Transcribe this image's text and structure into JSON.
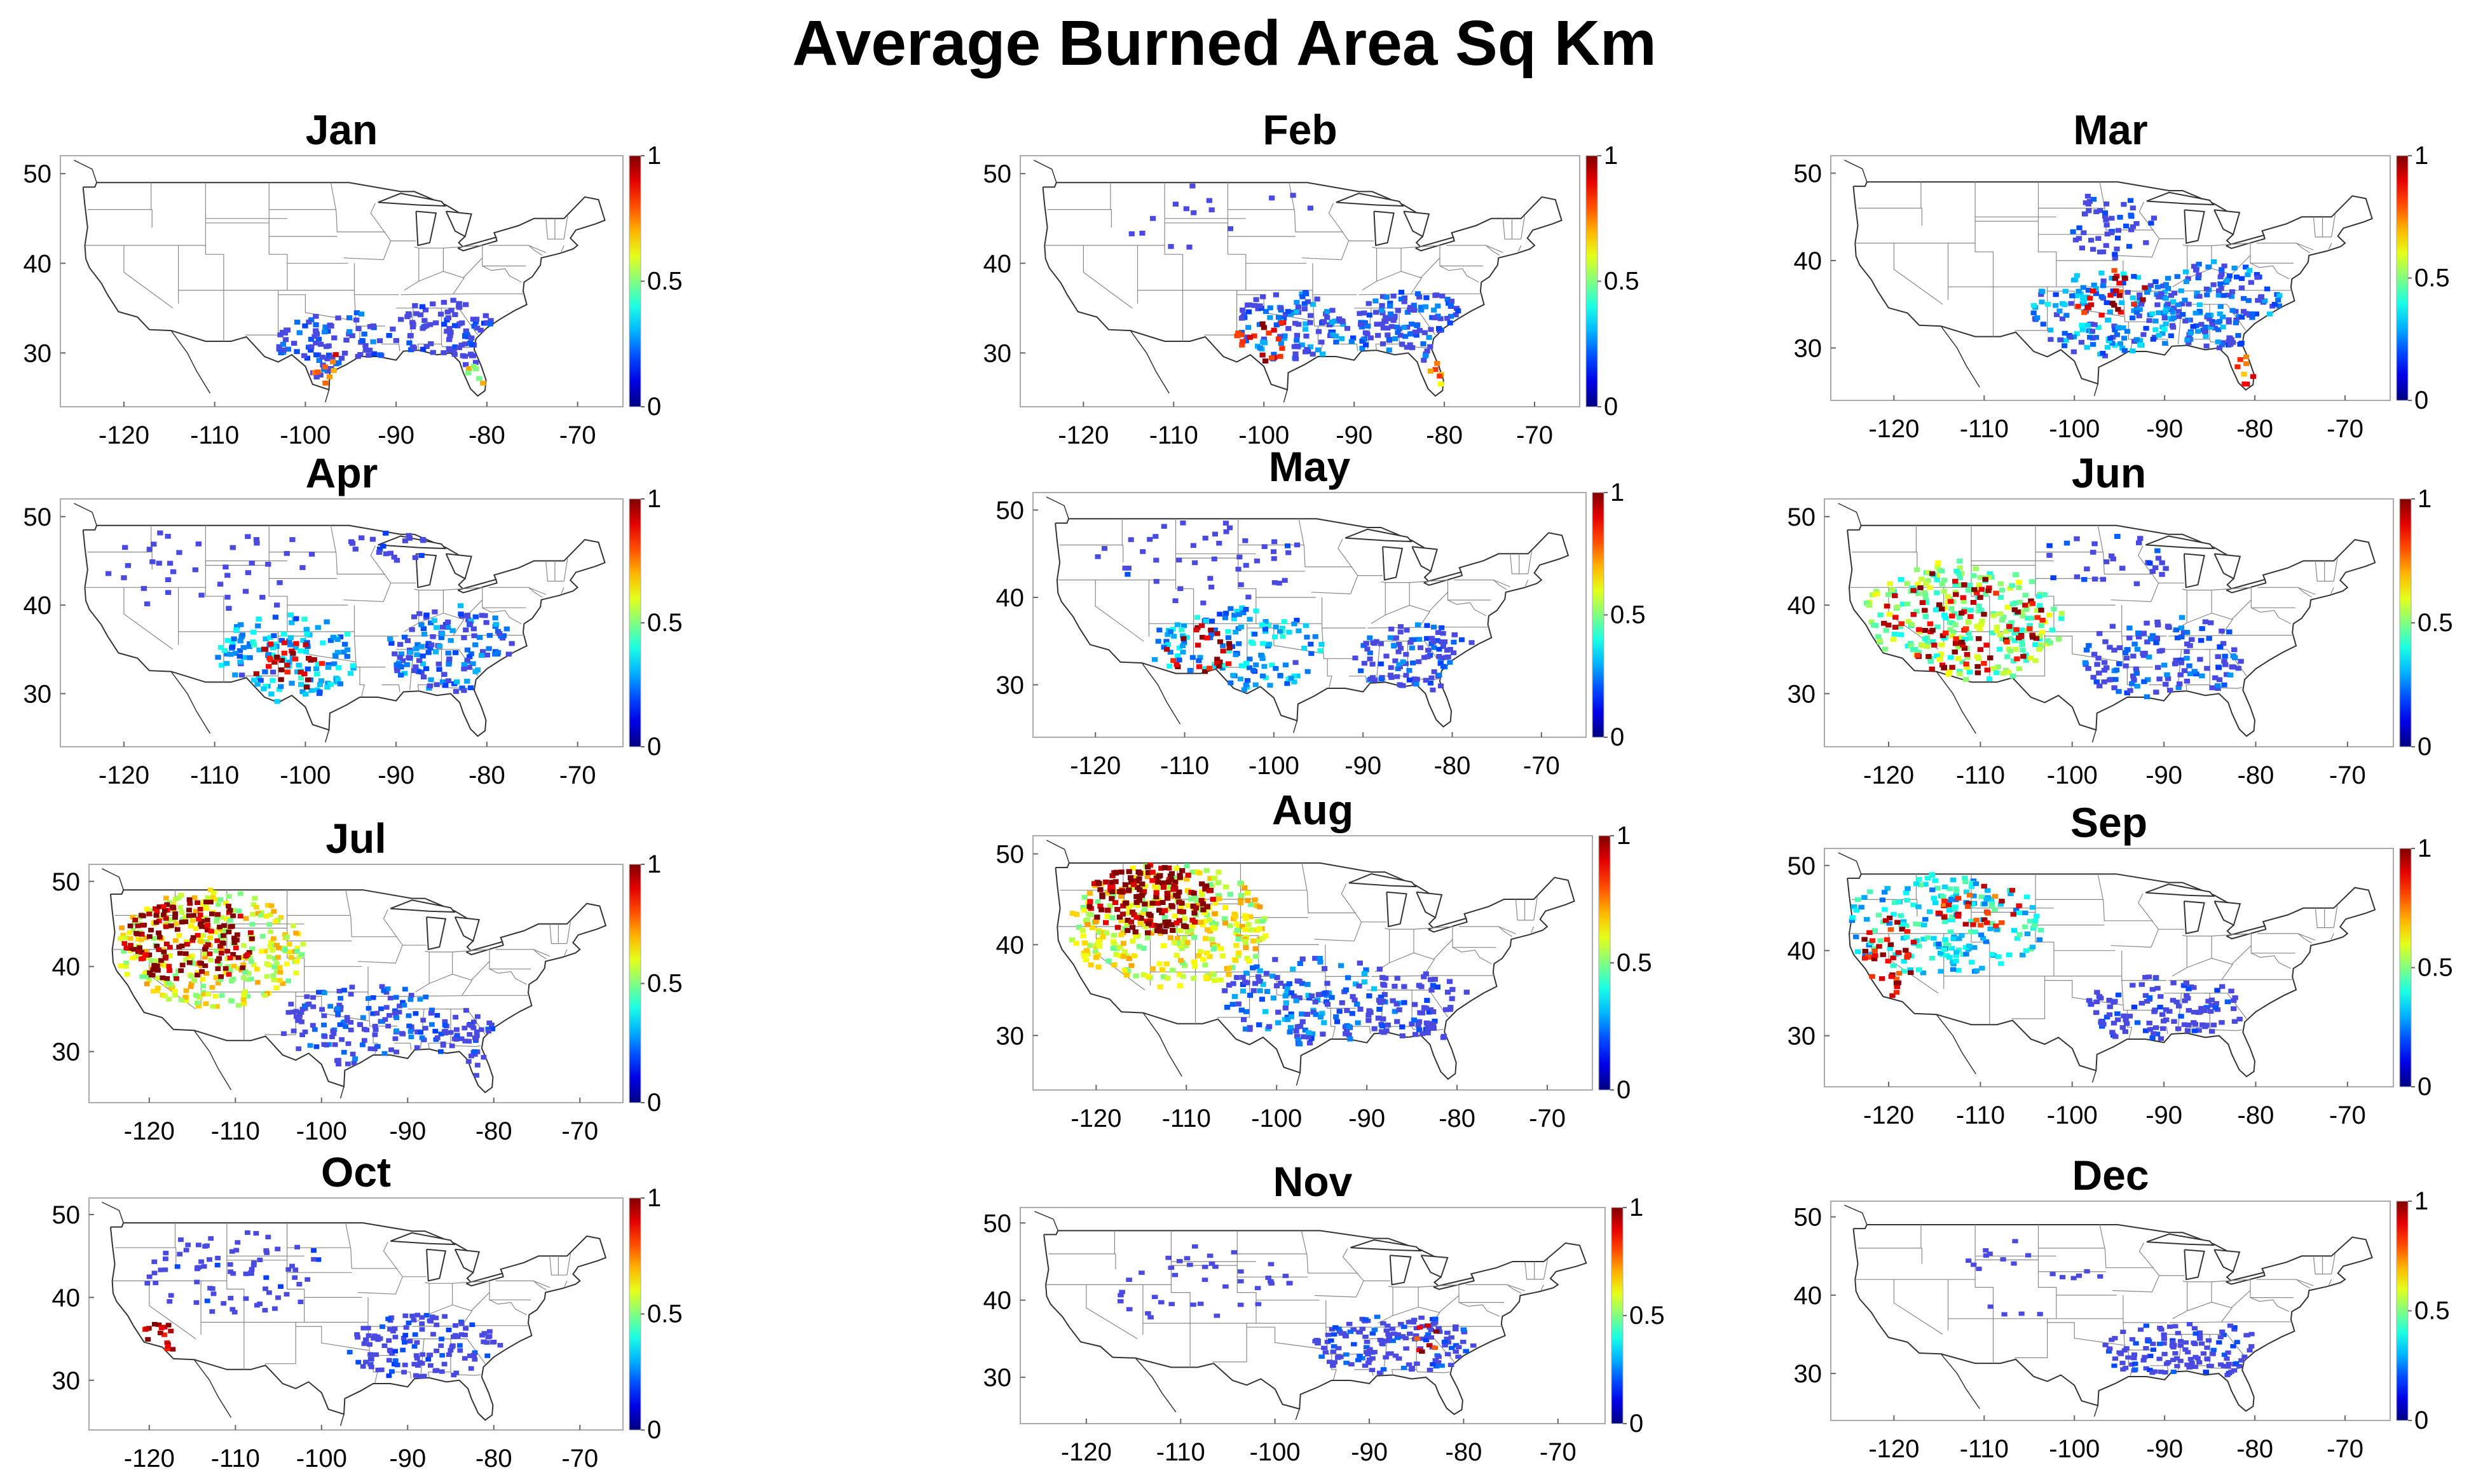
{
  "title": "Average Burned Area Sq Km",
  "colors": {
    "jet_scale": [
      "#00008f",
      "#0000ff",
      "#00ffff",
      "#ffff00",
      "#ff0000",
      "#800000"
    ],
    "low_value_cell": "#4a4ae0",
    "map_line": "#333333",
    "state_line": "#888888"
  },
  "chart_data": [
    {
      "type": "heatmap",
      "title": "Jan",
      "x_ticks": [
        "-120",
        "-110",
        "-100",
        "-90",
        "-80",
        "-70"
      ],
      "y_ticks": [
        "30",
        "40",
        "50"
      ],
      "xlim": [
        -127,
        -65
      ],
      "ylim": [
        24,
        52
      ],
      "colorbar": {
        "range": [
          0,
          1
        ],
        "tick_labels": [
          "0",
          "0.5",
          "1"
        ]
      },
      "regions": [
        {
          "lon": -97,
          "lat": 31,
          "rx": 6,
          "ry": 4,
          "value": 0.15,
          "count": 90
        },
        {
          "lon": -85,
          "lat": 32,
          "rx": 6,
          "ry": 4,
          "value": 0.1,
          "count": 90
        },
        {
          "lon": -97,
          "lat": 28,
          "rx": 2,
          "ry": 2,
          "value": 0.8,
          "count": 8
        },
        {
          "lon": -81,
          "lat": 27,
          "rx": 1.5,
          "ry": 2,
          "value": 0.6,
          "count": 6
        }
      ]
    },
    {
      "type": "heatmap",
      "title": "Feb",
      "x_ticks": [
        "-120",
        "-110",
        "-100",
        "-90",
        "-80",
        "-70"
      ],
      "y_ticks": [
        "30",
        "40",
        "50"
      ],
      "xlim": [
        -127,
        -65
      ],
      "ylim": [
        24,
        52
      ],
      "colorbar": {
        "range": [
          0,
          1
        ],
        "tick_labels": [
          "0",
          "0.5",
          "1"
        ]
      },
      "regions": [
        {
          "lon": -97,
          "lat": 33,
          "rx": 6,
          "ry": 4,
          "value": 0.2,
          "count": 110
        },
        {
          "lon": -84,
          "lat": 33,
          "rx": 7,
          "ry": 4,
          "value": 0.15,
          "count": 120
        },
        {
          "lon": -100,
          "lat": 32,
          "rx": 3,
          "ry": 3,
          "value": 0.9,
          "count": 20
        },
        {
          "lon": -105,
          "lat": 45,
          "rx": 12,
          "ry": 4,
          "value": 0.05,
          "count": 15
        },
        {
          "lon": -81,
          "lat": 27,
          "rx": 1.5,
          "ry": 2,
          "value": 0.7,
          "count": 6
        }
      ]
    },
    {
      "type": "heatmap",
      "title": "Mar",
      "x_ticks": [
        "-120",
        "-110",
        "-100",
        "-90",
        "-80",
        "-70"
      ],
      "y_ticks": [
        "30",
        "40",
        "50"
      ],
      "xlim": [
        -127,
        -65
      ],
      "ylim": [
        24,
        52
      ],
      "colorbar": {
        "range": [
          0,
          1
        ],
        "tick_labels": [
          "0",
          "0.5",
          "1"
        ]
      },
      "regions": [
        {
          "lon": -96,
          "lat": 34,
          "rx": 9,
          "ry": 5,
          "value": 0.25,
          "count": 170
        },
        {
          "lon": -84,
          "lat": 35,
          "rx": 7,
          "ry": 5,
          "value": 0.2,
          "count": 150
        },
        {
          "lon": -96,
          "lat": 44,
          "rx": 5,
          "ry": 4,
          "value": 0.1,
          "count": 50
        },
        {
          "lon": -96,
          "lat": 36,
          "rx": 4,
          "ry": 3,
          "value": 0.9,
          "count": 25
        },
        {
          "lon": -81,
          "lat": 27,
          "rx": 1.5,
          "ry": 2,
          "value": 0.8,
          "count": 8
        }
      ]
    },
    {
      "type": "heatmap",
      "title": "Apr",
      "x_ticks": [
        "-120",
        "-110",
        "-100",
        "-90",
        "-80",
        "-70"
      ],
      "y_ticks": [
        "30",
        "40",
        "50"
      ],
      "xlim": [
        -127,
        -65
      ],
      "ylim": [
        24,
        52
      ],
      "colorbar": {
        "range": [
          0,
          1
        ],
        "tick_labels": [
          "0",
          "0.5",
          "1"
        ]
      },
      "regions": [
        {
          "lon": -102,
          "lat": 34,
          "rx": 8,
          "ry": 5,
          "value": 0.3,
          "count": 140
        },
        {
          "lon": -84,
          "lat": 35,
          "rx": 7,
          "ry": 5,
          "value": 0.2,
          "count": 140
        },
        {
          "lon": -102,
          "lat": 33,
          "rx": 4,
          "ry": 3,
          "value": 0.95,
          "count": 30
        },
        {
          "lon": -110,
          "lat": 44,
          "rx": 12,
          "ry": 5,
          "value": 0.08,
          "count": 40
        },
        {
          "lon": -90,
          "lat": 47,
          "rx": 5,
          "ry": 2,
          "value": 0.1,
          "count": 20
        }
      ]
    },
    {
      "type": "heatmap",
      "title": "May",
      "x_ticks": [
        "-120",
        "-110",
        "-100",
        "-90",
        "-80",
        "-70"
      ],
      "y_ticks": [
        "30",
        "40",
        "50"
      ],
      "xlim": [
        -127,
        -65
      ],
      "ylim": [
        24,
        52
      ],
      "colorbar": {
        "range": [
          0,
          1
        ],
        "tick_labels": [
          "0",
          "0.5",
          "1"
        ]
      },
      "regions": [
        {
          "lon": -104,
          "lat": 34,
          "rx": 10,
          "ry": 5,
          "value": 0.3,
          "count": 140
        },
        {
          "lon": -84,
          "lat": 33,
          "rx": 7,
          "ry": 4,
          "value": 0.15,
          "count": 110
        },
        {
          "lon": -108,
          "lat": 34,
          "rx": 4,
          "ry": 3,
          "value": 0.95,
          "count": 25
        },
        {
          "lon": -108,
          "lat": 44,
          "rx": 12,
          "ry": 5,
          "value": 0.08,
          "count": 45
        }
      ]
    },
    {
      "type": "heatmap",
      "title": "Jun",
      "x_ticks": [
        "-120",
        "-110",
        "-100",
        "-90",
        "-80",
        "-70"
      ],
      "y_ticks": [
        "30",
        "40",
        "50"
      ],
      "xlim": [
        -127,
        -65
      ],
      "ylim": [
        24,
        52
      ],
      "colorbar": {
        "range": [
          0,
          1
        ],
        "tick_labels": [
          "0",
          "0.5",
          "1"
        ]
      },
      "regions": [
        {
          "lon": -112,
          "lat": 38,
          "rx": 11,
          "ry": 7,
          "value": 0.5,
          "count": 260
        },
        {
          "lon": -112,
          "lat": 38,
          "rx": 9,
          "ry": 6,
          "value": 0.95,
          "count": 90
        },
        {
          "lon": -90,
          "lat": 34,
          "rx": 9,
          "ry": 5,
          "value": 0.15,
          "count": 140
        },
        {
          "lon": -96,
          "lat": 45,
          "rx": 8,
          "ry": 3,
          "value": 0.1,
          "count": 30
        }
      ]
    },
    {
      "type": "heatmap",
      "title": "Jul",
      "x_ticks": [
        "-120",
        "-110",
        "-100",
        "-90",
        "-80",
        "-70"
      ],
      "y_ticks": [
        "30",
        "40",
        "50"
      ],
      "xlim": [
        -127,
        -65
      ],
      "ylim": [
        24,
        52
      ],
      "colorbar": {
        "range": [
          0,
          1
        ],
        "tick_labels": [
          "0",
          "0.5",
          "1"
        ]
      },
      "regions": [
        {
          "lon": -113,
          "lat": 42,
          "rx": 11,
          "ry": 7,
          "value": 0.6,
          "count": 320
        },
        {
          "lon": -115,
          "lat": 43,
          "rx": 8,
          "ry": 5,
          "value": 1.0,
          "count": 150
        },
        {
          "lon": -95,
          "lat": 33,
          "rx": 10,
          "ry": 5,
          "value": 0.15,
          "count": 150
        },
        {
          "lon": -82,
          "lat": 31,
          "rx": 5,
          "ry": 4,
          "value": 0.1,
          "count": 50
        }
      ]
    },
    {
      "type": "heatmap",
      "title": "Aug",
      "x_ticks": [
        "-120",
        "-110",
        "-100",
        "-90",
        "-80",
        "-70"
      ],
      "y_ticks": [
        "30",
        "40",
        "50"
      ],
      "xlim": [
        -127,
        -65
      ],
      "ylim": [
        24,
        52
      ],
      "colorbar": {
        "range": [
          0,
          1
        ],
        "tick_labels": [
          "0",
          "0.5",
          "1"
        ]
      },
      "regions": [
        {
          "lon": -112,
          "lat": 42,
          "rx": 11,
          "ry": 7,
          "value": 0.6,
          "count": 330
        },
        {
          "lon": -114,
          "lat": 45,
          "rx": 7,
          "ry": 4,
          "value": 1.0,
          "count": 160
        },
        {
          "lon": -96,
          "lat": 34,
          "rx": 10,
          "ry": 5,
          "value": 0.2,
          "count": 160
        },
        {
          "lon": -84,
          "lat": 33,
          "rx": 6,
          "ry": 4,
          "value": 0.1,
          "count": 70
        }
      ]
    },
    {
      "type": "heatmap",
      "title": "Sep",
      "x_ticks": [
        "-120",
        "-110",
        "-100",
        "-90",
        "-80",
        "-70"
      ],
      "y_ticks": [
        "30",
        "40",
        "50"
      ],
      "xlim": [
        -127,
        -65
      ],
      "ylim": [
        24,
        52
      ],
      "colorbar": {
        "range": [
          0,
          1
        ],
        "tick_labels": [
          "0",
          "0.5",
          "1"
        ]
      },
      "regions": [
        {
          "lon": -114,
          "lat": 43,
          "rx": 11,
          "ry": 6,
          "value": 0.35,
          "count": 200
        },
        {
          "lon": -120,
          "lat": 39,
          "rx": 3,
          "ry": 5,
          "value": 0.9,
          "count": 40
        },
        {
          "lon": -110,
          "lat": 45,
          "rx": 5,
          "ry": 3,
          "value": 0.85,
          "count": 30
        },
        {
          "lon": -90,
          "lat": 33,
          "rx": 9,
          "ry": 4,
          "value": 0.1,
          "count": 120
        }
      ]
    },
    {
      "type": "heatmap",
      "title": "Oct",
      "x_ticks": [
        "-120",
        "-110",
        "-100",
        "-90",
        "-80",
        "-70"
      ],
      "y_ticks": [
        "30",
        "40",
        "50"
      ],
      "xlim": [
        -127,
        -65
      ],
      "ylim": [
        24,
        52
      ],
      "colorbar": {
        "range": [
          0,
          1
        ],
        "tick_labels": [
          "0",
          "0.5",
          "1"
        ]
      },
      "regions": [
        {
          "lon": -110,
          "lat": 43,
          "rx": 11,
          "ry": 5,
          "value": 0.08,
          "count": 80
        },
        {
          "lon": -119,
          "lat": 35,
          "rx": 2.5,
          "ry": 2,
          "value": 0.95,
          "count": 20
        },
        {
          "lon": -88,
          "lat": 34,
          "rx": 9,
          "ry": 4,
          "value": 0.1,
          "count": 130
        }
      ]
    },
    {
      "type": "heatmap",
      "title": "Nov",
      "x_ticks": [
        "-120",
        "-110",
        "-100",
        "-90",
        "-80",
        "-70"
      ],
      "y_ticks": [
        "30",
        "40",
        "50"
      ],
      "xlim": [
        -127,
        -65
      ],
      "ylim": [
        24,
        52
      ],
      "colorbar": {
        "range": [
          0,
          1
        ],
        "tick_labels": [
          "0",
          "0.5",
          "1"
        ]
      },
      "regions": [
        {
          "lon": -87,
          "lat": 34,
          "rx": 9,
          "ry": 4,
          "value": 0.12,
          "count": 150
        },
        {
          "lon": -108,
          "lat": 42,
          "rx": 10,
          "ry": 5,
          "value": 0.05,
          "count": 40
        },
        {
          "lon": -84,
          "lat": 35,
          "rx": 2,
          "ry": 2,
          "value": 0.9,
          "count": 8
        }
      ]
    },
    {
      "type": "heatmap",
      "title": "Dec",
      "x_ticks": [
        "-120",
        "-110",
        "-100",
        "-90",
        "-80",
        "-70"
      ],
      "y_ticks": [
        "30",
        "40",
        "50"
      ],
      "xlim": [
        -127,
        -65
      ],
      "ylim": [
        24,
        52
      ],
      "colorbar": {
        "range": [
          0,
          1
        ],
        "tick_labels": [
          "0",
          "0.5",
          "1"
        ]
      },
      "regions": [
        {
          "lon": -88,
          "lat": 33,
          "rx": 9,
          "ry": 4,
          "value": 0.1,
          "count": 130
        },
        {
          "lon": -105,
          "lat": 42,
          "rx": 8,
          "ry": 5,
          "value": 0.05,
          "count": 20
        }
      ]
    }
  ]
}
